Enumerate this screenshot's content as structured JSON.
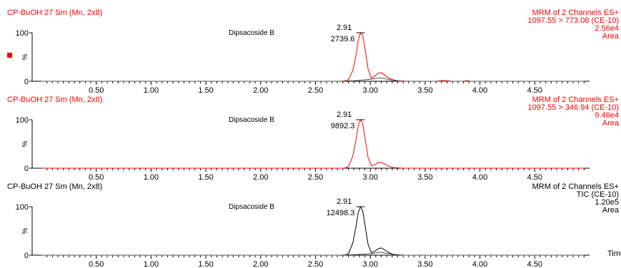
{
  "colors": {
    "red": "#ff0000",
    "black": "#000000",
    "baseline": "#555555"
  },
  "x_axis_label": "Time",
  "chart_data": [
    {
      "type": "line",
      "header_left": "CP-BuOH 27 Sm (Mn, 2x8)",
      "header_right": [
        "MRM of 2 Channels ES+",
        "1097.55 > 773.08 (CE-10)",
        "2.56e4",
        "Area"
      ],
      "color": "#ff0000",
      "compound": "Dipsacoside B",
      "peak_rt": "2.91",
      "peak_area": "2739.6",
      "y_tick_labels": [
        "100",
        "%",
        "0"
      ],
      "x_tick_labels": [
        "0.50",
        "1.00",
        "1.50",
        "2.00",
        "2.50",
        "3.00",
        "3.50",
        "4.00",
        "4.50"
      ],
      "xlim": [
        0.0,
        5.0
      ],
      "ylim": [
        0,
        100
      ],
      "marker": "red square",
      "series": [
        {
          "x": [
            0.0,
            2.75,
            2.8,
            2.84,
            2.87,
            2.89,
            2.91,
            2.93,
            2.95,
            2.98,
            3.01,
            3.04,
            3.07,
            3.1,
            3.13,
            3.17,
            3.21,
            3.25,
            3.35,
            3.6,
            3.65,
            3.7,
            3.75,
            3.85,
            3.88,
            3.91,
            4.95
          ],
          "y": [
            0,
            0,
            3,
            22,
            55,
            85,
            100,
            95,
            70,
            25,
            6,
            10,
            16,
            18,
            13,
            6,
            3,
            1,
            0,
            0,
            1.5,
            1,
            0,
            0,
            1.5,
            0,
            0
          ]
        },
        {
          "x": [
            0.0,
            2.7,
            2.85,
            3.0,
            3.06,
            3.1,
            3.14,
            3.2,
            3.3,
            4.95
          ],
          "y": [
            0,
            0,
            1,
            4,
            6,
            7,
            5,
            2,
            0,
            0
          ]
        }
      ]
    },
    {
      "type": "line",
      "header_left": "CP-BuOH 27 Sm (Mn, 2x8)",
      "header_right": [
        "MRM of 2 Channels ES+",
        "1097.55 > 346.94 (CE-10)",
        "9.46e4",
        "Area"
      ],
      "color": "#ff0000",
      "compound": "Dipsacoside B",
      "peak_rt": "2.91",
      "peak_area": "9892.3",
      "y_tick_labels": [
        "100",
        "%",
        "0"
      ],
      "x_tick_labels": [
        "0.50",
        "1.00",
        "1.50",
        "2.00",
        "2.50",
        "3.00",
        "3.50",
        "4.00",
        "4.50"
      ],
      "xlim": [
        0.0,
        5.0
      ],
      "ylim": [
        0,
        100
      ],
      "series": [
        {
          "x": [
            0.0,
            2.76,
            2.8,
            2.84,
            2.87,
            2.89,
            2.91,
            2.93,
            2.95,
            2.98,
            3.01,
            3.04,
            3.07,
            3.1,
            3.13,
            3.17,
            3.22,
            3.3,
            4.95
          ],
          "y": [
            0,
            0,
            3,
            25,
            60,
            88,
            100,
            92,
            65,
            22,
            5,
            7,
            11,
            12,
            9,
            4,
            1,
            0,
            0
          ]
        }
      ]
    },
    {
      "type": "line",
      "header_left": "CP-BuOH 27 Sm (Mn, 2x8)",
      "header_right": [
        "MRM of 2 Channels ES+",
        "TIC (CE-10)",
        "1.20e5",
        "Area"
      ],
      "color": "#000000",
      "compound": "Dipsacoside B",
      "peak_rt": "2.91",
      "peak_area": "12498.3",
      "y_tick_labels": [
        "100",
        "%",
        "0"
      ],
      "x_tick_labels": [
        "0.50",
        "1.00",
        "1.50",
        "2.00",
        "2.50",
        "3.00",
        "3.50",
        "4.00",
        "4.50"
      ],
      "xlim": [
        0.0,
        5.0
      ],
      "ylim": [
        0,
        100
      ],
      "series": [
        {
          "x": [
            0.0,
            2.76,
            2.8,
            2.84,
            2.87,
            2.89,
            2.91,
            2.93,
            2.95,
            2.98,
            3.01,
            3.04,
            3.07,
            3.1,
            3.13,
            3.17,
            3.22,
            3.3,
            4.95
          ],
          "y": [
            0,
            0,
            3,
            25,
            60,
            88,
            100,
            92,
            65,
            22,
            5,
            8,
            13,
            15,
            11,
            5,
            1,
            0,
            0
          ]
        },
        {
          "x": [
            0.0,
            2.7,
            2.85,
            3.0,
            3.06,
            3.1,
            3.14,
            3.2,
            3.3,
            4.95
          ],
          "y": [
            0,
            0,
            1,
            3,
            5,
            6,
            4,
            2,
            0,
            0
          ]
        }
      ]
    }
  ]
}
